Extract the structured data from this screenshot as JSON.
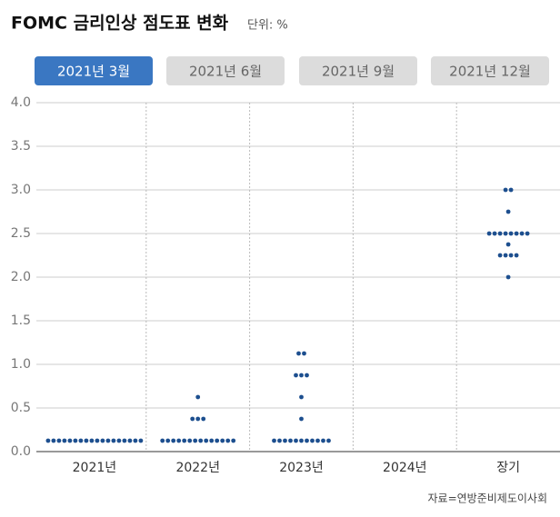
{
  "header": {
    "title": "FOMC 금리인상 점도표 변화",
    "unit": "단위: %"
  },
  "tabs": [
    "2021년 3월",
    "2021년 6월",
    "2021년 9월",
    "2021년 12월"
  ],
  "active_tab": 0,
  "chart_data": {
    "type": "dot",
    "categories": [
      "2021년",
      "2022년",
      "2023년",
      "2024년",
      "장기"
    ],
    "dots": [
      [
        {
          "value": 0.125,
          "count": 18
        }
      ],
      [
        {
          "value": 0.625,
          "count": 1
        },
        {
          "value": 0.375,
          "count": 3
        },
        {
          "value": 0.125,
          "count": 14
        }
      ],
      [
        {
          "value": 1.125,
          "count": 2
        },
        {
          "value": 0.875,
          "count": 3
        },
        {
          "value": 0.625,
          "count": 1
        },
        {
          "value": 0.375,
          "count": 1
        },
        {
          "value": 0.125,
          "count": 11
        }
      ],
      [],
      [
        {
          "value": 3.0,
          "count": 2
        },
        {
          "value": 2.75,
          "count": 1
        },
        {
          "value": 2.5,
          "count": 8
        },
        {
          "value": 2.375,
          "count": 1
        },
        {
          "value": 2.25,
          "count": 4
        },
        {
          "value": 2.0,
          "count": 1
        }
      ]
    ],
    "color": "#1d4f8f",
    "ylim": [
      0,
      4
    ],
    "yticks": [
      {
        "value": 0,
        "label": "0.0"
      },
      {
        "value": 0.5,
        "label": "0.5"
      },
      {
        "value": 1,
        "label": "1.0"
      },
      {
        "value": 1.5,
        "label": "1.5"
      },
      {
        "value": 2,
        "label": "2.0"
      },
      {
        "value": 2.5,
        "label": "2.5"
      },
      {
        "value": 3,
        "label": "3.0"
      },
      {
        "value": 3.5,
        "label": "3.5"
      },
      {
        "value": 4,
        "label": "4.0"
      }
    ],
    "grid": true
  },
  "source": "자료=연방준비제도이사회"
}
